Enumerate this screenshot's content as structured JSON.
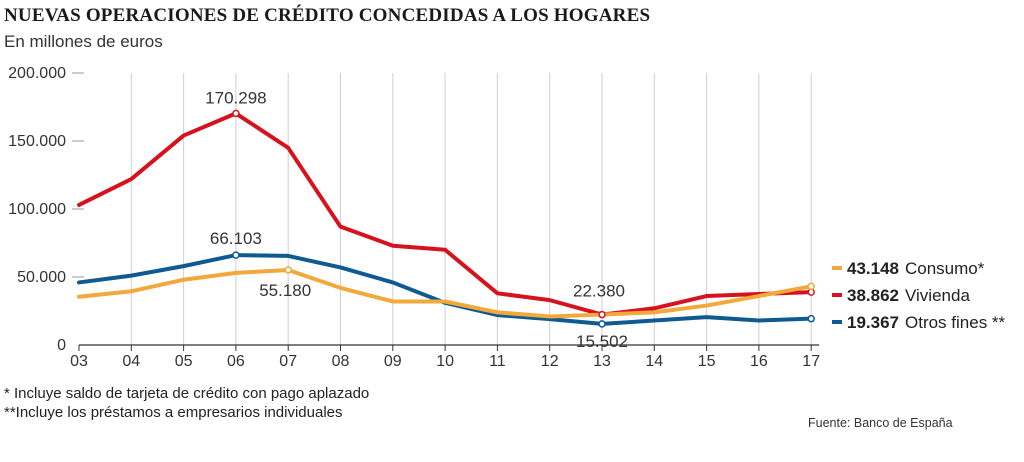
{
  "chart_data": {
    "type": "line",
    "title": "NUEVAS OPERACIONES DE CRÉDITO CONCEDIDAS A LOS HOGARES",
    "subtitle": "En millones de euros",
    "x": [
      "03",
      "04",
      "05",
      "06",
      "07",
      "08",
      "09",
      "10",
      "11",
      "12",
      "13",
      "14",
      "15",
      "16",
      "17"
    ],
    "ylim": [
      0,
      200000
    ],
    "yticks": [
      0,
      50000,
      100000,
      150000,
      200000
    ],
    "ytick_labels": [
      "0",
      "50.000",
      "100.000",
      "150.000",
      "200.000"
    ],
    "grid": "vertical",
    "series": [
      {
        "name": "Vivienda",
        "color": "#d7121f",
        "values": [
          103000,
          122000,
          154000,
          170298,
          145000,
          87000,
          73000,
          70000,
          38000,
          33000,
          22380,
          27000,
          36000,
          37500,
          38862
        ]
      },
      {
        "name": "Otros fines **",
        "color": "#0f5a91",
        "values": [
          46000,
          51000,
          58000,
          66103,
          65500,
          57000,
          46000,
          31000,
          22000,
          19000,
          15502,
          18000,
          20500,
          18000,
          19367
        ]
      },
      {
        "name": "Consumo*",
        "color": "#f2a83a",
        "values": [
          35500,
          39500,
          48000,
          53000,
          55180,
          42000,
          32000,
          32000,
          24000,
          21000,
          22380,
          24000,
          29000,
          36000,
          43148
        ]
      }
    ],
    "annotations": [
      {
        "text": "170.298",
        "series": 0,
        "index": 3
      },
      {
        "text": "66.103",
        "series": 1,
        "index": 3
      },
      {
        "text": "55.180",
        "series": 2,
        "index": 4
      },
      {
        "text": "22.380",
        "series": 0,
        "index": 10
      },
      {
        "text": "15.502",
        "series": 1,
        "index": 10
      }
    ],
    "legend": [
      {
        "value": "43.148",
        "name": "Consumo*",
        "color": "#f2a83a"
      },
      {
        "value": "38.862",
        "name": "Vivienda",
        "color": "#d7121f"
      },
      {
        "value": "19.367",
        "name": "Otros fines **",
        "color": "#0f5a91"
      }
    ]
  },
  "notes": [
    "* Incluye saldo de tarjeta de crédito con pago aplazado",
    "**Incluye los préstamos a empresarios individuales"
  ],
  "source": "Fuente: Banco de España"
}
